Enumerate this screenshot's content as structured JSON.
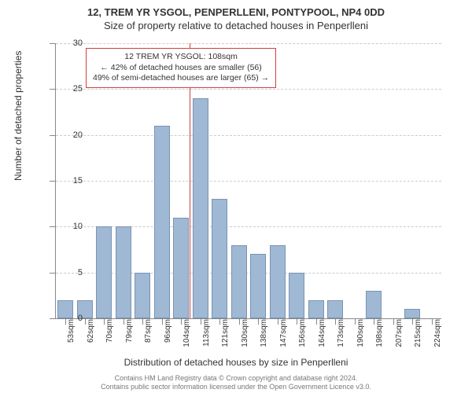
{
  "title_main": "12, TREM YR YSGOL, PENPERLLENI, PONTYPOOL, NP4 0DD",
  "title_sub": "Size of property relative to detached houses in Penperlleni",
  "chart": {
    "type": "bar",
    "ylim": [
      0,
      30
    ],
    "ytick_step": 5,
    "y_axis_title": "Number of detached properties",
    "x_axis_title": "Distribution of detached houses by size in Penperlleni",
    "x_labels": [
      "53sqm",
      "62sqm",
      "70sqm",
      "79sqm",
      "87sqm",
      "96sqm",
      "104sqm",
      "113sqm",
      "121sqm",
      "130sqm",
      "138sqm",
      "147sqm",
      "156sqm",
      "164sqm",
      "173sqm",
      "190sqm",
      "198sqm",
      "207sqm",
      "215sqm",
      "224sqm"
    ],
    "values": [
      2,
      2,
      10,
      10,
      5,
      21,
      11,
      24,
      13,
      8,
      7,
      8,
      5,
      2,
      2,
      0,
      3,
      0,
      1,
      0
    ],
    "bar_color": "#9fb8d4",
    "bar_border_color": "#7a94b3",
    "grid_color": "#cccccc",
    "background_color": "#ffffff",
    "reference_line": {
      "position_index": 6.45,
      "color": "#d04040"
    },
    "annotation": {
      "lines": [
        "12 TREM YR YSGOL: 108sqm",
        "← 42% of detached houses are smaller (56)",
        "49% of semi-detached houses are larger (65) →"
      ],
      "border_color": "#d04040"
    }
  },
  "footer_line1": "Contains HM Land Registry data © Crown copyright and database right 2024.",
  "footer_line2": "Contains public sector information licensed under the Open Government Licence v3.0."
}
